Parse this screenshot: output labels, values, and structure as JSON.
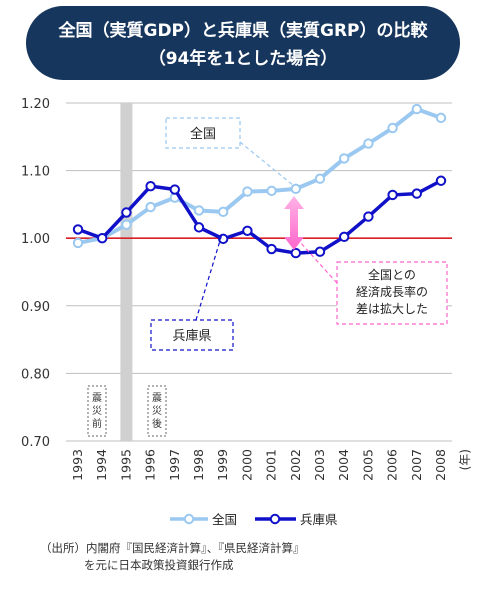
{
  "header": {
    "title_line1": "全国（実質GDP）と兵庫県（実質GRP）の比較",
    "title_line2": "（94年を1とした場合）"
  },
  "chart_data": {
    "type": "line",
    "x": [
      "1993",
      "1994",
      "1995",
      "1996",
      "1997",
      "1998",
      "1999",
      "2000",
      "2001",
      "2002",
      "2003",
      "2004",
      "2005",
      "2006",
      "2007",
      "2008"
    ],
    "x_unit": "(年)",
    "yticks": [
      "1.20",
      "1.10",
      "1.00",
      "0.90",
      "0.80",
      "0.70"
    ],
    "ylim": [
      0.7,
      1.2
    ],
    "reference_line": 1.0,
    "series": [
      {
        "name": "全国",
        "color": "#9ac8f0",
        "values": [
          0.993,
          1.0,
          1.02,
          1.046,
          1.06,
          1.041,
          1.039,
          1.069,
          1.07,
          1.073,
          1.088,
          1.118,
          1.14,
          1.163,
          1.191,
          1.178
        ]
      },
      {
        "name": "兵庫県",
        "color": "#1010c8",
        "values": [
          1.013,
          1.0,
          1.038,
          1.077,
          1.072,
          1.016,
          0.999,
          1.011,
          0.984,
          0.978,
          0.98,
          1.002,
          1.032,
          1.064,
          1.066,
          1.085
        ]
      }
    ],
    "shaded_year": "1995",
    "annotations": {
      "label_national": "全国",
      "label_hyogo": "兵庫県",
      "gap_note": [
        "全国との",
        "経済成長率の",
        "差は拡大した"
      ],
      "before_quake": "震災前",
      "after_quake": "震災後"
    },
    "legend": [
      "全国",
      "兵庫県"
    ]
  },
  "source": {
    "line1": "（出所）内閣府『国民経済計算』、『県民経済計算』",
    "line2": "を元に日本政策投資銀行作成"
  }
}
